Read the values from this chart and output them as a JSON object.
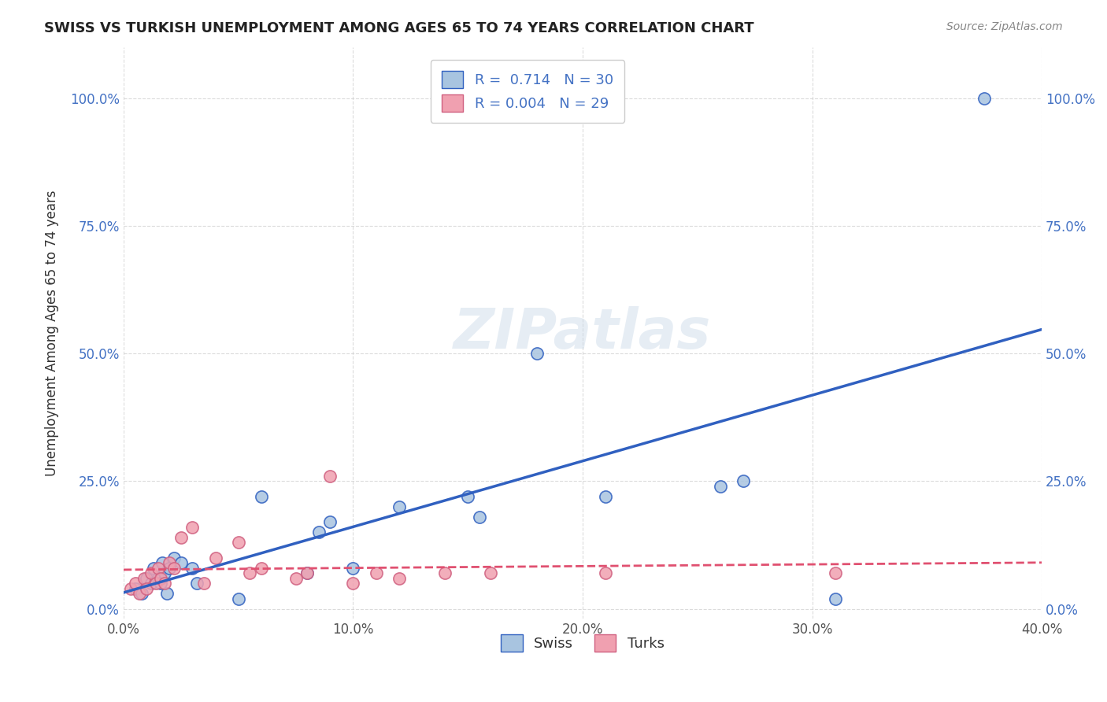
{
  "title": "SWISS VS TURKISH UNEMPLOYMENT AMONG AGES 65 TO 74 YEARS CORRELATION CHART",
  "source": "Source: ZipAtlas.com",
  "ylabel": "Unemployment Among Ages 65 to 74 years",
  "xlabel": "",
  "xlim": [
    0.0,
    0.4
  ],
  "ylim": [
    -0.02,
    1.1
  ],
  "xtick_labels": [
    "0.0%",
    "10.0%",
    "20.0%",
    "30.0%",
    "40.0%"
  ],
  "xtick_values": [
    0.0,
    0.1,
    0.2,
    0.3,
    0.4
  ],
  "ytick_labels": [
    "0.0%",
    "25.0%",
    "50.0%",
    "75.0%",
    "100.0%"
  ],
  "ytick_values": [
    0.0,
    0.25,
    0.5,
    0.75,
    1.0
  ],
  "swiss_R": "0.714",
  "swiss_N": "30",
  "turks_R": "0.004",
  "turks_N": "29",
  "swiss_color": "#a8c4e0",
  "turks_color": "#f0a0b0",
  "swiss_line_color": "#3060c0",
  "turks_line_color": "#e05070",
  "background_color": "#ffffff",
  "watermark": "ZIPatlas",
  "swiss_x": [
    0.005,
    0.008,
    0.01,
    0.012,
    0.013,
    0.015,
    0.016,
    0.017,
    0.018,
    0.019,
    0.02,
    0.022,
    0.025,
    0.03,
    0.032,
    0.05,
    0.06,
    0.08,
    0.085,
    0.09,
    0.1,
    0.12,
    0.15,
    0.155,
    0.18,
    0.21,
    0.26,
    0.27,
    0.31,
    0.375
  ],
  "swiss_y": [
    0.04,
    0.03,
    0.06,
    0.05,
    0.08,
    0.06,
    0.05,
    0.09,
    0.07,
    0.03,
    0.08,
    0.1,
    0.09,
    0.08,
    0.05,
    0.02,
    0.22,
    0.07,
    0.15,
    0.17,
    0.08,
    0.2,
    0.22,
    0.18,
    0.5,
    0.22,
    0.24,
    0.25,
    0.02,
    1.0
  ],
  "turks_x": [
    0.003,
    0.005,
    0.007,
    0.009,
    0.01,
    0.012,
    0.014,
    0.015,
    0.016,
    0.018,
    0.02,
    0.022,
    0.025,
    0.03,
    0.035,
    0.04,
    0.05,
    0.055,
    0.06,
    0.075,
    0.08,
    0.09,
    0.1,
    0.11,
    0.12,
    0.14,
    0.16,
    0.21,
    0.31
  ],
  "turks_y": [
    0.04,
    0.05,
    0.03,
    0.06,
    0.04,
    0.07,
    0.05,
    0.08,
    0.06,
    0.05,
    0.09,
    0.08,
    0.14,
    0.16,
    0.05,
    0.1,
    0.13,
    0.07,
    0.08,
    0.06,
    0.07,
    0.26,
    0.05,
    0.07,
    0.06,
    0.07,
    0.07,
    0.07,
    0.07
  ]
}
